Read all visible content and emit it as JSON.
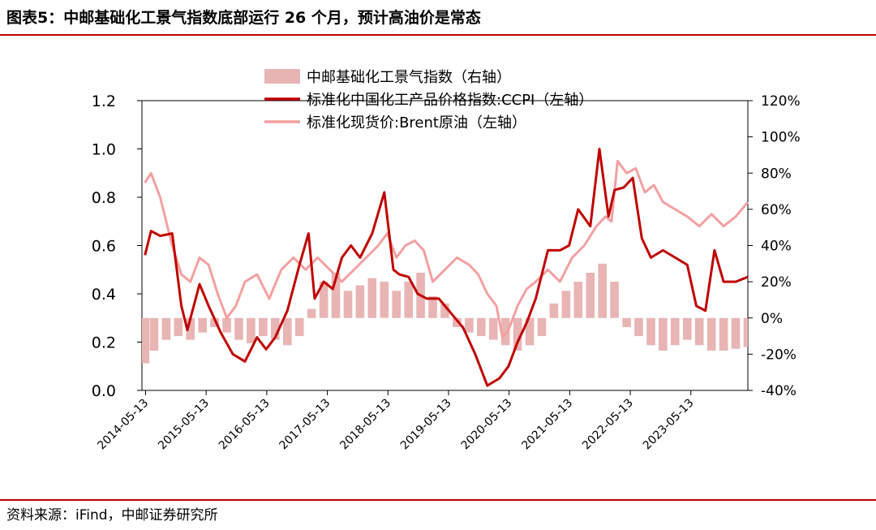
{
  "figure": {
    "title": "图表5：中邮基础化工景气指数底部运行 26 个月，预计高油价是常态",
    "source": "资料来源：iFind，中邮证券研究所"
  },
  "colors": {
    "accent": "#c00000",
    "index_bar": "#e8b4b4",
    "ccpi_line": "#c00000",
    "brent_line": "#f4a0a0"
  },
  "chart_data": {
    "type": "line",
    "title": "",
    "xlabel": "",
    "ylabel_left": "",
    "ylabel_right": "",
    "x_ticks": [
      "2014-05-13",
      "2015-05-13",
      "2016-05-13",
      "2017-05-13",
      "2018-05-13",
      "2019-05-13",
      "2020-05-13",
      "2021-05-13",
      "2022-05-13",
      "2023-05-13"
    ],
    "x_range": [
      2014.3,
      2024.3
    ],
    "y_left": {
      "range": [
        0,
        1.2
      ],
      "ticks": [
        "0.0",
        "0.2",
        "0.4",
        "0.6",
        "0.8",
        "1.0",
        "1.2"
      ]
    },
    "y_right": {
      "range": [
        -40,
        120
      ],
      "unit": "%",
      "ticks": [
        "-40%",
        "-20%",
        "0%",
        "20%",
        "40%",
        "60%",
        "80%",
        "100%",
        "120%"
      ]
    },
    "legend": [
      "中邮基础化工景气指数（右轴）",
      "标准化中国化工产品价格指数:CCPI（左轴）",
      "标准化现货价:Brent原油（左轴）"
    ],
    "series": [
      {
        "name": "中邮基础化工景气指数（右轴）",
        "type": "bar",
        "axis": "right",
        "x": [
          2014.35,
          2014.5,
          2014.7,
          2014.9,
          2015.1,
          2015.3,
          2015.5,
          2015.7,
          2015.9,
          2016.1,
          2016.3,
          2016.5,
          2016.7,
          2016.9,
          2017.1,
          2017.3,
          2017.5,
          2017.7,
          2017.9,
          2018.1,
          2018.3,
          2018.5,
          2018.7,
          2018.9,
          2019.1,
          2019.3,
          2019.5,
          2019.7,
          2019.9,
          2020.1,
          2020.3,
          2020.5,
          2020.7,
          2020.9,
          2021.1,
          2021.3,
          2021.5,
          2021.7,
          2021.9,
          2022.1,
          2022.3,
          2022.5,
          2022.7,
          2022.9,
          2023.1,
          2023.3,
          2023.5,
          2023.7,
          2023.9,
          2024.1,
          2024.3
        ],
        "values": [
          -25,
          -18,
          -12,
          -10,
          -12,
          -8,
          -5,
          -8,
          -12,
          -14,
          -10,
          -12,
          -15,
          -10,
          5,
          20,
          25,
          15,
          18,
          22,
          20,
          15,
          20,
          25,
          12,
          8,
          -5,
          -8,
          -10,
          -12,
          -15,
          -18,
          -15,
          -10,
          8,
          15,
          20,
          25,
          30,
          20,
          -5,
          -10,
          -15,
          -18,
          -15,
          -12,
          -15,
          -18,
          -18,
          -17,
          -16
        ]
      },
      {
        "name": "标准化中国化工产品价格指数:CCPI（左轴）",
        "type": "line",
        "axis": "left",
        "x": [
          2014.35,
          2014.45,
          2014.6,
          2014.8,
          2014.95,
          2015.05,
          2015.25,
          2015.4,
          2015.6,
          2015.8,
          2016.0,
          2016.2,
          2016.35,
          2016.5,
          2016.7,
          2016.9,
          2017.05,
          2017.15,
          2017.3,
          2017.45,
          2017.6,
          2017.75,
          2017.9,
          2018.1,
          2018.3,
          2018.45,
          2018.55,
          2018.7,
          2018.85,
          2019.0,
          2019.2,
          2019.4,
          2019.6,
          2019.8,
          2020.0,
          2020.2,
          2020.35,
          2020.5,
          2020.65,
          2020.8,
          2021.0,
          2021.2,
          2021.35,
          2021.5,
          2021.7,
          2021.85,
          2022.0,
          2022.1,
          2022.25,
          2022.4,
          2022.55,
          2022.7,
          2022.9,
          2023.1,
          2023.3,
          2023.45,
          2023.6,
          2023.75,
          2023.9,
          2024.1,
          2024.3
        ],
        "values": [
          0.56,
          0.66,
          0.64,
          0.65,
          0.35,
          0.25,
          0.44,
          0.35,
          0.24,
          0.15,
          0.12,
          0.22,
          0.17,
          0.22,
          0.33,
          0.52,
          0.65,
          0.38,
          0.45,
          0.42,
          0.55,
          0.6,
          0.55,
          0.65,
          0.82,
          0.5,
          0.48,
          0.47,
          0.4,
          0.38,
          0.38,
          0.32,
          0.26,
          0.15,
          0.02,
          0.05,
          0.1,
          0.2,
          0.28,
          0.38,
          0.58,
          0.58,
          0.6,
          0.75,
          0.68,
          1.0,
          0.72,
          0.83,
          0.84,
          0.88,
          0.63,
          0.55,
          0.58,
          0.55,
          0.52,
          0.35,
          0.33,
          0.58,
          0.45,
          0.45,
          0.47
        ]
      },
      {
        "name": "标准化现货价:Brent原油（左轴）",
        "type": "line",
        "axis": "left",
        "x": [
          2014.35,
          2014.45,
          2014.6,
          2014.8,
          2014.95,
          2015.1,
          2015.25,
          2015.4,
          2015.55,
          2015.7,
          2015.85,
          2016.0,
          2016.2,
          2016.4,
          2016.6,
          2016.8,
          2017.0,
          2017.2,
          2017.4,
          2017.6,
          2017.8,
          2018.0,
          2018.2,
          2018.35,
          2018.5,
          2018.65,
          2018.8,
          2018.95,
          2019.1,
          2019.3,
          2019.5,
          2019.7,
          2019.85,
          2020.0,
          2020.15,
          2020.25,
          2020.35,
          2020.5,
          2020.65,
          2020.8,
          2021.0,
          2021.2,
          2021.4,
          2021.6,
          2021.8,
          2021.95,
          2022.05,
          2022.15,
          2022.3,
          2022.45,
          2022.6,
          2022.75,
          2022.9,
          2023.1,
          2023.3,
          2023.5,
          2023.7,
          2023.9,
          2024.1,
          2024.3
        ],
        "values": [
          0.86,
          0.9,
          0.8,
          0.6,
          0.48,
          0.45,
          0.55,
          0.52,
          0.4,
          0.3,
          0.35,
          0.45,
          0.48,
          0.38,
          0.5,
          0.55,
          0.5,
          0.55,
          0.5,
          0.45,
          0.5,
          0.55,
          0.6,
          0.65,
          0.55,
          0.6,
          0.62,
          0.58,
          0.45,
          0.5,
          0.55,
          0.52,
          0.48,
          0.4,
          0.35,
          0.22,
          0.25,
          0.35,
          0.42,
          0.45,
          0.5,
          0.45,
          0.55,
          0.6,
          0.68,
          0.72,
          0.7,
          0.95,
          0.9,
          0.92,
          0.82,
          0.85,
          0.78,
          0.75,
          0.72,
          0.68,
          0.73,
          0.68,
          0.72,
          0.78
        ]
      }
    ]
  }
}
